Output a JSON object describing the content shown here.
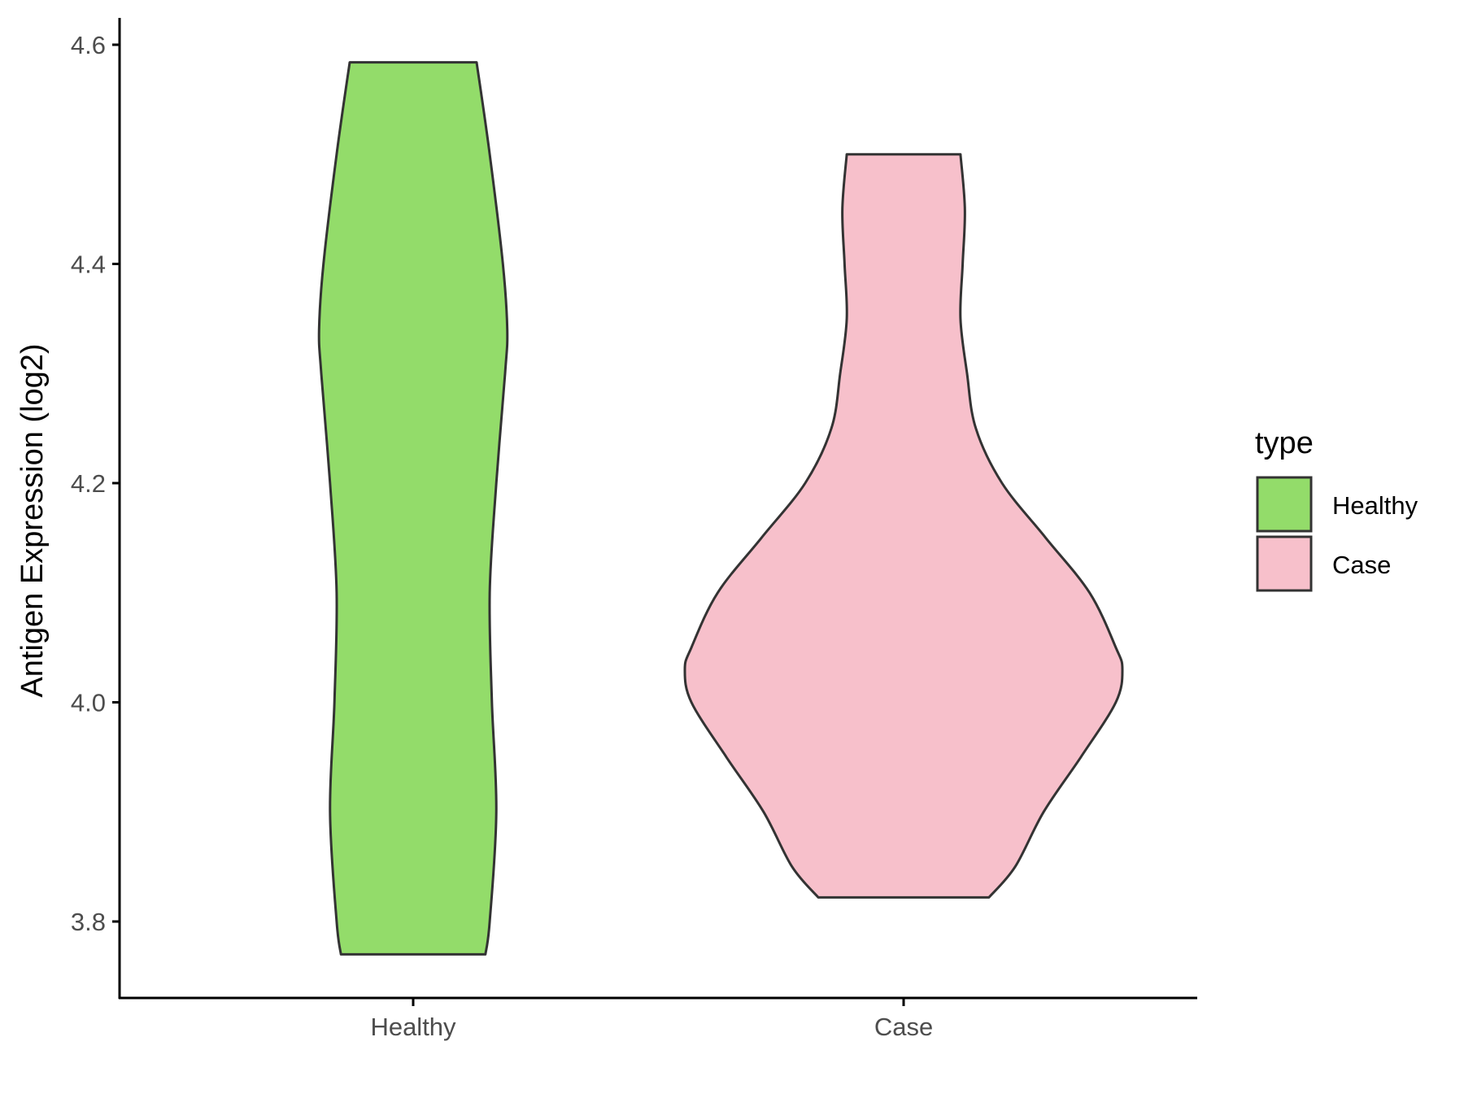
{
  "chart_data": {
    "type": "violin",
    "ylabel": "Antigen Expression (log2)",
    "xlabel": "",
    "categories": [
      "Healthy",
      "Case"
    ],
    "ylim": [
      3.73,
      4.62
    ],
    "yticks": [
      "3.8",
      "4.0",
      "4.2",
      "4.4",
      "4.6"
    ],
    "grid": false,
    "legend": {
      "title": "type",
      "placement": "right",
      "entries": [
        "Healthy",
        "Case"
      ]
    },
    "series": [
      {
        "name": "Healthy",
        "color": "#93DC6A",
        "min": 3.77,
        "max": 4.584,
        "density_profile": [
          [
            3.77,
            0.33
          ],
          [
            3.8,
            0.35
          ],
          [
            3.9,
            0.38
          ],
          [
            4.0,
            0.36
          ],
          [
            4.1,
            0.35
          ],
          [
            4.2,
            0.38
          ],
          [
            4.3,
            0.42
          ],
          [
            4.34,
            0.43
          ],
          [
            4.4,
            0.41
          ],
          [
            4.5,
            0.35
          ],
          [
            4.584,
            0.29
          ]
        ]
      },
      {
        "name": "Case",
        "color": "#F7C0CB",
        "min": 3.822,
        "max": 4.5,
        "density_profile": [
          [
            3.822,
            0.39
          ],
          [
            3.85,
            0.51
          ],
          [
            3.9,
            0.64
          ],
          [
            3.95,
            0.81
          ],
          [
            4.0,
            0.97
          ],
          [
            4.03,
            1.0
          ],
          [
            4.05,
            0.97
          ],
          [
            4.1,
            0.85
          ],
          [
            4.15,
            0.65
          ],
          [
            4.2,
            0.45
          ],
          [
            4.25,
            0.33
          ],
          [
            4.3,
            0.29
          ],
          [
            4.35,
            0.26
          ],
          [
            4.4,
            0.27
          ],
          [
            4.45,
            0.28
          ],
          [
            4.5,
            0.26
          ]
        ]
      }
    ]
  }
}
